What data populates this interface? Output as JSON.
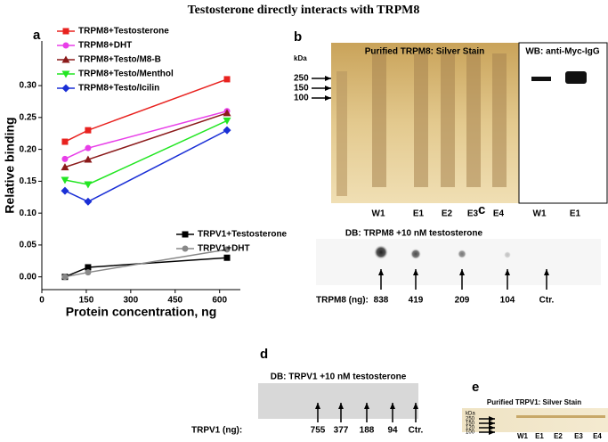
{
  "title": "Testosterone directly interacts with TRPM8",
  "chart_data": {
    "type": "line",
    "label": "a",
    "xlabel": "Protein concentration, ng",
    "ylabel": "Relative binding",
    "x": [
      78,
      156,
      625
    ],
    "series": [
      {
        "name": "TRPM8+Testosterone",
        "color": "#e8221f",
        "marker": "square",
        "values": [
          0.212,
          0.23,
          0.31
        ]
      },
      {
        "name": "TRPM8+DHT",
        "color": "#e83ee8",
        "marker": "circle",
        "values": [
          0.185,
          0.202,
          0.26
        ]
      },
      {
        "name": "TRPM8+Testo/M8-B",
        "color": "#8b1a1a",
        "marker": "triangle",
        "values": [
          0.172,
          0.184,
          0.257
        ]
      },
      {
        "name": "TRPM8+Testo/Menthol",
        "color": "#22e622",
        "marker": "triangle-down",
        "values": [
          0.152,
          0.145,
          0.245
        ]
      },
      {
        "name": "TRPM8+Testo/Icilin",
        "color": "#1a2fd6",
        "marker": "diamond",
        "values": [
          0.135,
          0.118,
          0.23
        ]
      },
      {
        "name": "TRPV1+Testosterone",
        "color": "#000000",
        "marker": "square",
        "values": [
          0.0,
          0.015,
          0.03
        ]
      },
      {
        "name": "TRPV1+DHT",
        "color": "#888888",
        "marker": "circle",
        "values": [
          0.0,
          0.007,
          0.043
        ]
      }
    ],
    "xlim": [
      0,
      670
    ],
    "xticks": [
      0,
      150,
      300,
      450,
      600
    ],
    "ylim": [
      -0.02,
      0.37
    ],
    "yticks": [
      {
        "value": 0,
        "label": "0.00"
      },
      {
        "value": 0.05,
        "label": "0.05"
      },
      {
        "value": 0.1,
        "label": "0.10"
      },
      {
        "value": 0.15,
        "label": "0.15"
      },
      {
        "value": 0.2,
        "label": "0.20"
      },
      {
        "value": 0.25,
        "label": "0.25"
      },
      {
        "value": 0.3,
        "label": "0.30"
      }
    ]
  },
  "panel_b": {
    "label": "b",
    "title": "Purified TRPM8: Silver Stain",
    "wb_title": "WB: anti-Myc-IgG",
    "kda": "kDa",
    "markers": [
      "250",
      "150",
      "100"
    ],
    "lanes": [
      "W1",
      "E1",
      "E2",
      "E3",
      "E4"
    ],
    "wb_lanes": [
      "W1",
      "E1"
    ]
  },
  "panel_c": {
    "label": "c",
    "title": "DB: TRPM8 +10 nM testosterone",
    "row_label": "TRPM8 (ng):",
    "lanes": [
      "838",
      "419",
      "209",
      "104",
      "Ctr."
    ]
  },
  "panel_d": {
    "label": "d",
    "title": "DB: TRPV1 +10 nM testosterone",
    "row_label": "TRPV1 (ng):",
    "lanes": [
      "755",
      "377",
      "188",
      "94",
      "Ctr."
    ]
  },
  "panel_e": {
    "label": "e",
    "title": "Purified TRPV1: Silver Stain",
    "kda": "kDa",
    "markers": [
      "250",
      "150",
      "120",
      "100"
    ],
    "lanes": [
      "W1",
      "E1",
      "E2",
      "E3",
      "E4"
    ]
  }
}
